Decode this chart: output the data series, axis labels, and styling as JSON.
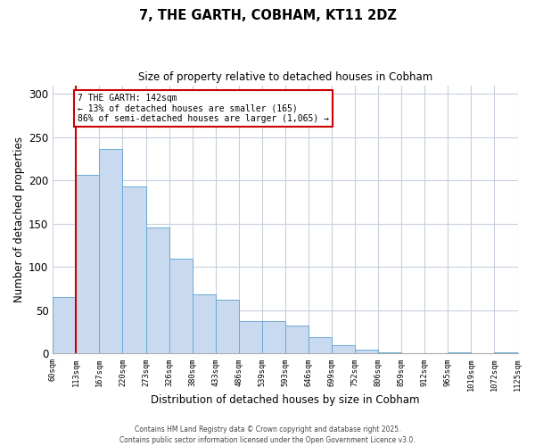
{
  "title": "7, THE GARTH, COBHAM, KT11 2DZ",
  "subtitle": "Size of property relative to detached houses in Cobham",
  "bar_values": [
    65,
    206,
    236,
    193,
    146,
    110,
    68,
    62,
    37,
    37,
    32,
    19,
    9,
    4,
    1,
    0,
    0,
    1,
    0,
    1
  ],
  "bar_labels": [
    "60sqm",
    "113sqm",
    "167sqm",
    "220sqm",
    "273sqm",
    "326sqm",
    "380sqm",
    "433sqm",
    "486sqm",
    "539sqm",
    "593sqm",
    "646sqm",
    "699sqm",
    "752sqm",
    "806sqm",
    "859sqm",
    "912sqm",
    "965sqm",
    "1019sqm",
    "1072sqm",
    "1125sqm"
  ],
  "xlabel": "Distribution of detached houses by size in Cobham",
  "ylabel": "Number of detached properties",
  "ylim": [
    0,
    310
  ],
  "yticks": [
    0,
    50,
    100,
    150,
    200,
    250,
    300
  ],
  "bar_color": "#c8d9f0",
  "bar_edge_color": "#6aaad4",
  "vline_color": "#cc0000",
  "annotation_title": "7 THE GARTH: 142sqm",
  "annotation_line1": "← 13% of detached houses are smaller (165)",
  "annotation_line2": "86% of semi-detached houses are larger (1,065) →",
  "annotation_box_color": "#cc0000",
  "footer_line1": "Contains HM Land Registry data © Crown copyright and database right 2025.",
  "footer_line2": "Contains public sector information licensed under the Open Government Licence v3.0.",
  "background_color": "#ffffff",
  "grid_color": "#c8d0de"
}
